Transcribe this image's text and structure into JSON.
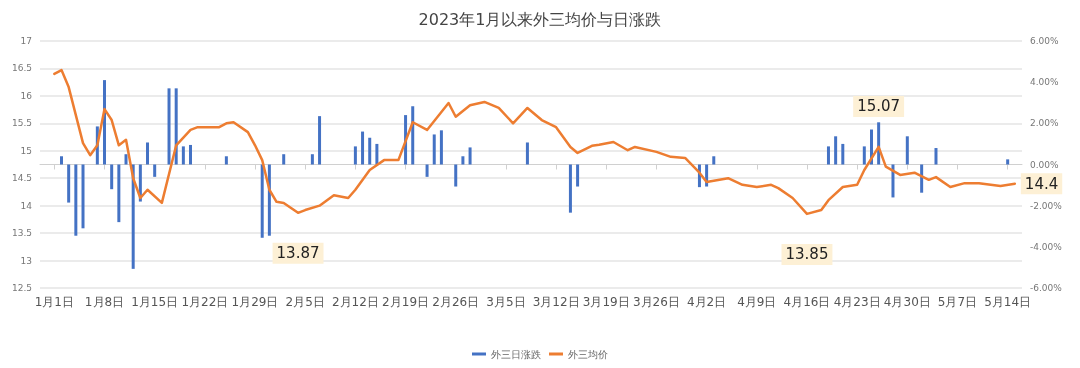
{
  "chart_data": {
    "type": "line",
    "title": "2023年1月以来外三均价与日涨跌",
    "xlim": [
      "2022-12-30",
      "2023-05-16"
    ],
    "xticks": [
      {
        "value": "2023-01-01",
        "label": "1月1日"
      },
      {
        "value": "2023-01-08",
        "label": "1月8日"
      },
      {
        "value": "2023-01-15",
        "label": "1月15日"
      },
      {
        "value": "2023-01-22",
        "label": "1月22日"
      },
      {
        "value": "2023-01-29",
        "label": "1月29日"
      },
      {
        "value": "2023-02-05",
        "label": "2月5日"
      },
      {
        "value": "2023-02-12",
        "label": "2月12日"
      },
      {
        "value": "2023-02-19",
        "label": "2月19日"
      },
      {
        "value": "2023-02-26",
        "label": "2月26日"
      },
      {
        "value": "2023-03-05",
        "label": "3月5日"
      },
      {
        "value": "2023-03-12",
        "label": "3月12日"
      },
      {
        "value": "2023-03-19",
        "label": "3月19日"
      },
      {
        "value": "2023-03-26",
        "label": "3月26日"
      },
      {
        "value": "2023-04-02",
        "label": "4月2日"
      },
      {
        "value": "2023-04-09",
        "label": "4月9日"
      },
      {
        "value": "2023-04-16",
        "label": "4月16日"
      },
      {
        "value": "2023-04-23",
        "label": "4月23日"
      },
      {
        "value": "2023-04-30",
        "label": "4月30日"
      },
      {
        "value": "2023-05-07",
        "label": "5月7日"
      },
      {
        "value": "2023-05-14",
        "label": "5月14日"
      }
    ],
    "ylim": [
      12.5,
      17
    ],
    "yticks": [
      12.5,
      13,
      13.5,
      14,
      14.5,
      15,
      15.5,
      16,
      16.5,
      17
    ],
    "y2lim": [
      -6,
      6
    ],
    "y2ticks": [
      {
        "value": -6,
        "label": "-6.00%"
      },
      {
        "value": -4,
        "label": "-4.00%"
      },
      {
        "value": -2,
        "label": "-2.00%"
      },
      {
        "value": 0,
        "label": "0.00%"
      },
      {
        "value": 2,
        "label": "2.00%"
      },
      {
        "value": 4,
        "label": "4.00%"
      },
      {
        "value": 6,
        "label": "6.00%"
      }
    ],
    "grid": "y",
    "legend": "bottom",
    "series": [
      {
        "name": "外三日涨跌",
        "type": "bar",
        "axis": "y2",
        "color": "#4472c4",
        "x": [
          "2023-01-02",
          "2023-01-03",
          "2023-01-04",
          "2023-01-05",
          "2023-01-07",
          "2023-01-08",
          "2023-01-09",
          "2023-01-10",
          "2023-01-11",
          "2023-01-12",
          "2023-01-13",
          "2023-01-14",
          "2023-01-15",
          "2023-01-17",
          "2023-01-18",
          "2023-01-19",
          "2023-01-20",
          "2023-01-25",
          "2023-01-30",
          "2023-01-31",
          "2023-02-02",
          "2023-02-06",
          "2023-02-07",
          "2023-02-12",
          "2023-02-13",
          "2023-02-14",
          "2023-02-15",
          "2023-02-19",
          "2023-02-20",
          "2023-02-22",
          "2023-02-23",
          "2023-02-24",
          "2023-02-26",
          "2023-02-27",
          "2023-02-28",
          "2023-03-08",
          "2023-03-14",
          "2023-03-15",
          "2023-04-01",
          "2023-04-02",
          "2023-04-03",
          "2023-04-19",
          "2023-04-20",
          "2023-04-21",
          "2023-04-24",
          "2023-04-25",
          "2023-04-26",
          "2023-04-28",
          "2023-04-30",
          "2023-05-02",
          "2023-05-04",
          "2023-05-14"
        ],
        "values": [
          0.4,
          -1.85,
          -3.46,
          -3.1,
          1.85,
          4.1,
          -1.2,
          -2.8,
          0.5,
          -5.07,
          -1.8,
          1.07,
          -0.6,
          3.7,
          3.7,
          0.88,
          0.95,
          0.4,
          -3.56,
          -3.46,
          0.5,
          0.5,
          2.35,
          0.88,
          1.6,
          1.3,
          1.0,
          2.4,
          2.83,
          -0.6,
          1.46,
          1.66,
          -1.07,
          0.4,
          0.83,
          1.07,
          -2.34,
          -1.07,
          -1.1,
          -1.07,
          0.4,
          0.88,
          1.37,
          1.0,
          0.88,
          1.7,
          2.05,
          -1.6,
          1.37,
          -1.37,
          0.8,
          0.25
        ]
      },
      {
        "name": "外三均价",
        "color": "#ed7d31",
        "x": [
          "2023-01-01",
          "2023-01-02",
          "2023-01-03",
          "2023-01-05",
          "2023-01-06",
          "2023-01-07",
          "2023-01-08",
          "2023-01-09",
          "2023-01-10",
          "2023-01-11",
          "2023-01-12",
          "2023-01-13",
          "2023-01-14",
          "2023-01-16",
          "2023-01-18",
          "2023-01-20",
          "2023-01-21",
          "2023-01-24",
          "2023-01-25",
          "2023-01-26",
          "2023-01-28",
          "2023-01-29",
          "2023-01-30",
          "2023-01-31",
          "2023-02-01",
          "2023-02-02",
          "2023-02-04",
          "2023-02-05",
          "2023-02-07",
          "2023-02-09",
          "2023-02-11",
          "2023-02-12",
          "2023-02-14",
          "2023-02-16",
          "2023-02-18",
          "2023-02-20",
          "2023-02-22",
          "2023-02-25",
          "2023-02-26",
          "2023-02-28",
          "2023-03-02",
          "2023-03-04",
          "2023-03-06",
          "2023-03-08",
          "2023-03-10",
          "2023-03-12",
          "2023-03-14",
          "2023-03-15",
          "2023-03-17",
          "2023-03-18",
          "2023-03-20",
          "2023-03-22",
          "2023-03-23",
          "2023-03-26",
          "2023-03-28",
          "2023-03-30",
          "2023-04-01",
          "2023-04-02",
          "2023-04-05",
          "2023-04-07",
          "2023-04-09",
          "2023-04-11",
          "2023-04-12",
          "2023-04-14",
          "2023-04-16",
          "2023-04-18",
          "2023-04-19",
          "2023-04-21",
          "2023-04-23",
          "2023-04-24",
          "2023-04-26",
          "2023-04-27",
          "2023-04-29",
          "2023-05-01",
          "2023-05-03",
          "2023-05-04",
          "2023-05-06",
          "2023-05-08",
          "2023-05-10",
          "2023-05-13",
          "2023-05-15"
        ],
        "values": [
          16.4,
          16.47,
          16.16,
          15.14,
          14.92,
          15.1,
          15.76,
          15.56,
          15.1,
          15.2,
          14.5,
          14.14,
          14.29,
          14.05,
          15.1,
          15.38,
          15.43,
          15.43,
          15.5,
          15.52,
          15.34,
          15.1,
          14.83,
          14.29,
          14.07,
          14.05,
          13.87,
          13.92,
          14.0,
          14.19,
          14.14,
          14.29,
          14.65,
          14.83,
          14.83,
          15.52,
          15.38,
          15.87,
          15.62,
          15.83,
          15.89,
          15.78,
          15.5,
          15.78,
          15.56,
          15.43,
          15.07,
          14.96,
          15.09,
          15.11,
          15.16,
          15.01,
          15.07,
          14.98,
          14.89,
          14.87,
          14.6,
          14.43,
          14.5,
          14.38,
          14.34,
          14.38,
          14.32,
          14.14,
          13.85,
          13.92,
          14.1,
          14.34,
          14.38,
          14.65,
          15.07,
          14.71,
          14.56,
          14.6,
          14.47,
          14.52,
          14.34,
          14.41,
          14.41,
          14.36,
          14.4
        ],
        "value_labels": [
          null,
          null,
          null,
          null,
          null,
          null,
          null,
          null,
          null,
          null,
          null,
          null,
          null,
          null,
          null,
          null,
          null,
          null,
          null,
          null,
          null,
          null,
          null,
          null,
          null,
          null,
          "13.87",
          null,
          null,
          null,
          null,
          null,
          null,
          null,
          null,
          null,
          null,
          null,
          null,
          null,
          null,
          null,
          null,
          null,
          null,
          null,
          null,
          null,
          null,
          null,
          null,
          null,
          null,
          null,
          null,
          null,
          null,
          null,
          null,
          null,
          null,
          null,
          null,
          null,
          "13.85",
          null,
          null,
          null,
          null,
          null,
          "15.07",
          null,
          null,
          null,
          null,
          null,
          null,
          null,
          null,
          null,
          "14.4"
        ]
      }
    ]
  }
}
